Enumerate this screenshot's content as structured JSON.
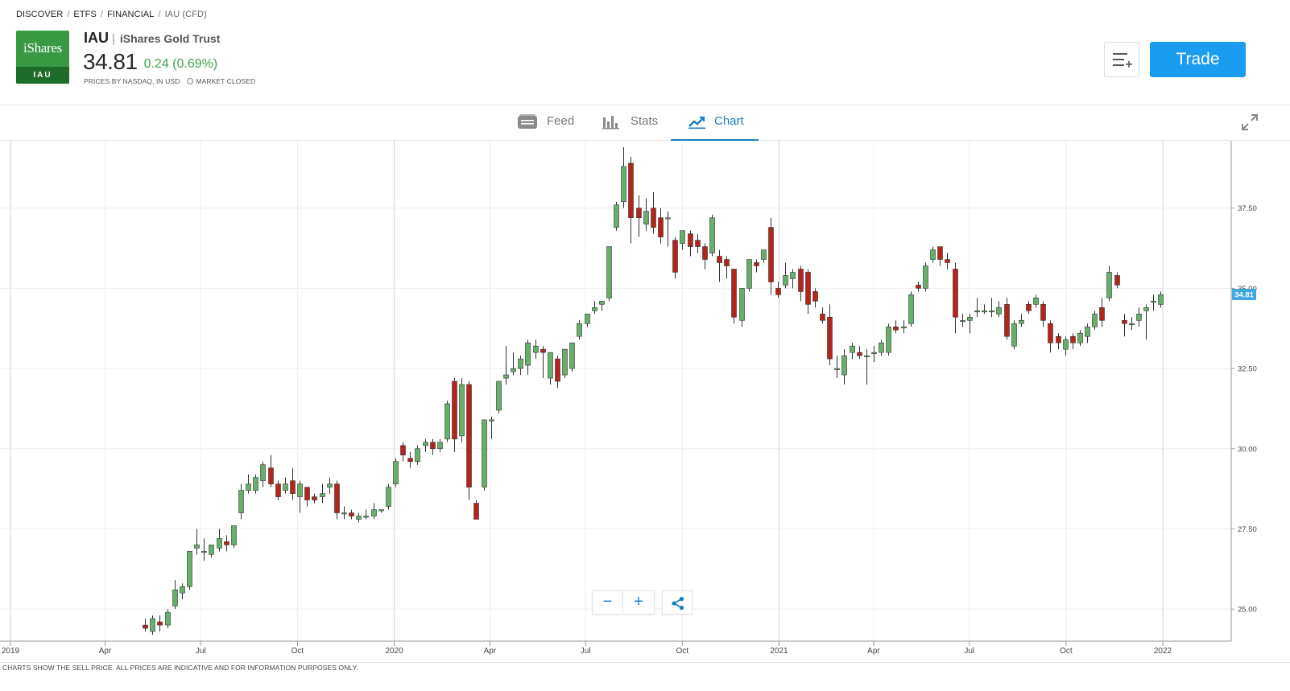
{
  "breadcrumb": [
    "DISCOVER",
    "ETFS",
    "FINANCIAL",
    "IAU (CFD)"
  ],
  "logo": {
    "brand": "iShares",
    "ticker": "IAU",
    "color": "#3a9a44"
  },
  "instrument": {
    "symbol": "IAU",
    "separator": "|",
    "name": "iShares Gold Trust",
    "price": "34.81",
    "change": "0.24 (0.69%)",
    "source": "PRICES BY NASDAQ, IN USD",
    "market_status": "MARKET CLOSED"
  },
  "actions": {
    "watchlist_icon": "add-to-list-icon",
    "trade_label": "Trade"
  },
  "tabs": [
    {
      "label": "Feed",
      "icon": "feed-icon"
    },
    {
      "label": "Stats",
      "icon": "bar-stats-icon"
    },
    {
      "label": "Chart",
      "icon": "trend-chart-icon",
      "active": true
    }
  ],
  "footer_note": "CHARTS SHOW THE SELL PRICE. ALL PRICES ARE INDICATIVE AND FOR INFORMATION PURPOSES ONLY.",
  "colors": {
    "up": "#67b06b",
    "down": "#b5241a",
    "accent": "#1a7fc1",
    "trade": "#1a9cf0",
    "last_price": "#3fa9df"
  },
  "chart_controls": {
    "zoom_out": "−",
    "zoom_in": "+",
    "share_icon": "share-icon"
  },
  "chart_data": {
    "type": "candlestick",
    "interval": "weekly",
    "x_tick_labels": [
      "2019",
      "Apr",
      "Jul",
      "Oct",
      "2020",
      "Apr",
      "Jul",
      "Oct",
      "2021",
      "Apr",
      "Jul",
      "Oct",
      "2022"
    ],
    "y_tick_labels": [
      "25.00",
      "27.50",
      "30.00",
      "32.50",
      "35.00",
      "37.50"
    ],
    "ylim": [
      24.0,
      39.6
    ],
    "last_price_label": "34.81",
    "grid": true,
    "candles": [
      [
        "2019-05-06",
        24.5,
        24.7,
        24.4,
        24.3
      ],
      [
        "2019-05-13",
        24.3,
        24.8,
        24.7,
        24.2
      ],
      [
        "2019-05-20",
        24.6,
        24.8,
        24.5,
        24.3
      ],
      [
        "2019-05-27",
        24.5,
        25.0,
        24.9,
        24.4
      ],
      [
        "2019-06-03",
        25.1,
        25.9,
        25.6,
        25.0
      ],
      [
        "2019-06-10",
        25.5,
        25.8,
        25.7,
        25.3
      ],
      [
        "2019-06-17",
        25.7,
        26.8,
        26.8,
        25.6
      ],
      [
        "2019-06-24",
        26.9,
        27.5,
        27.0,
        26.7
      ],
      [
        "2019-07-01",
        26.8,
        27.2,
        26.8,
        26.5
      ],
      [
        "2019-07-08",
        26.7,
        27.0,
        27.0,
        26.6
      ],
      [
        "2019-07-15",
        26.9,
        27.5,
        27.2,
        26.8
      ],
      [
        "2019-07-22",
        27.1,
        27.3,
        27.0,
        26.8
      ],
      [
        "2019-07-29",
        27.0,
        27.6,
        27.6,
        26.9
      ],
      [
        "2019-08-05",
        28.0,
        28.9,
        28.7,
        27.8
      ],
      [
        "2019-08-12",
        28.7,
        29.2,
        28.9,
        28.6
      ],
      [
        "2019-08-19",
        28.7,
        29.2,
        29.1,
        28.6
      ],
      [
        "2019-08-26",
        29.0,
        29.6,
        29.5,
        28.8
      ],
      [
        "2019-09-02",
        29.4,
        29.8,
        28.9,
        28.8
      ],
      [
        "2019-09-09",
        28.9,
        29.0,
        28.5,
        28.4
      ],
      [
        "2019-09-16",
        28.7,
        29.1,
        28.9,
        28.6
      ],
      [
        "2019-09-23",
        29.0,
        29.4,
        28.6,
        28.4
      ],
      [
        "2019-09-30",
        28.5,
        29.0,
        28.9,
        28.0
      ],
      [
        "2019-10-07",
        28.8,
        28.8,
        28.4,
        28.2
      ],
      [
        "2019-10-14",
        28.5,
        28.6,
        28.4,
        28.3
      ],
      [
        "2019-10-21",
        28.5,
        28.9,
        28.6,
        28.3
      ],
      [
        "2019-10-28",
        28.8,
        29.1,
        28.9,
        28.6
      ],
      [
        "2019-11-04",
        28.9,
        29.0,
        28.0,
        27.8
      ],
      [
        "2019-11-11",
        28.0,
        28.2,
        28.0,
        27.8
      ],
      [
        "2019-11-18",
        28.0,
        28.1,
        27.9,
        27.8
      ],
      [
        "2019-11-25",
        27.8,
        28.0,
        27.9,
        27.7
      ],
      [
        "2019-12-02",
        27.9,
        28.1,
        27.9,
        27.8
      ],
      [
        "2019-12-09",
        27.9,
        28.3,
        28.1,
        27.8
      ],
      [
        "2019-12-16",
        28.1,
        28.1,
        28.1,
        28.0
      ],
      [
        "2019-12-23",
        28.2,
        28.9,
        28.8,
        28.1
      ],
      [
        "2019-12-30",
        28.9,
        29.7,
        29.6,
        28.8
      ],
      [
        "2020-01-06",
        30.1,
        30.2,
        29.8,
        29.6
      ],
      [
        "2020-01-13",
        29.7,
        29.9,
        29.6,
        29.4
      ],
      [
        "2020-01-20",
        29.6,
        30.1,
        30.0,
        29.5
      ],
      [
        "2020-01-27",
        30.1,
        30.3,
        30.2,
        29.9
      ],
      [
        "2020-02-03",
        30.2,
        30.3,
        30.0,
        29.8
      ],
      [
        "2020-02-10",
        30.0,
        30.3,
        30.2,
        29.9
      ],
      [
        "2020-02-17",
        30.3,
        31.5,
        31.4,
        30.2
      ],
      [
        "2020-02-24",
        32.1,
        32.2,
        30.3,
        29.9
      ],
      [
        "2020-03-02",
        30.4,
        32.2,
        32.0,
        30.2
      ],
      [
        "2020-03-09",
        32.0,
        32.1,
        28.8,
        28.4
      ],
      [
        "2020-03-16",
        28.3,
        28.4,
        27.8,
        27.8
      ],
      [
        "2020-03-23",
        28.8,
        30.9,
        30.9,
        28.7
      ],
      [
        "2020-03-30",
        30.9,
        31.0,
        30.9,
        30.3
      ],
      [
        "2020-04-06",
        31.2,
        32.1,
        32.1,
        31.1
      ],
      [
        "2020-04-13",
        32.2,
        33.2,
        32.3,
        32.0
      ],
      [
        "2020-04-20",
        32.4,
        33.0,
        32.5,
        32.3
      ],
      [
        "2020-04-27",
        32.5,
        32.9,
        32.8,
        32.3
      ],
      [
        "2020-05-04",
        32.6,
        33.4,
        33.3,
        32.3
      ],
      [
        "2020-05-11",
        33.0,
        33.4,
        33.2,
        32.8
      ],
      [
        "2020-05-18",
        33.1,
        33.2,
        33.0,
        32.2
      ],
      [
        "2020-05-25",
        32.2,
        33.0,
        33.0,
        32.0
      ],
      [
        "2020-06-01",
        32.8,
        32.9,
        32.1,
        31.9
      ],
      [
        "2020-06-08",
        32.3,
        33.1,
        33.1,
        32.2
      ],
      [
        "2020-06-15",
        32.5,
        33.3,
        33.3,
        32.4
      ],
      [
        "2020-06-22",
        33.5,
        34.0,
        33.9,
        33.4
      ],
      [
        "2020-06-29",
        33.9,
        34.2,
        34.2,
        33.8
      ],
      [
        "2020-07-06",
        34.3,
        34.6,
        34.4,
        34.2
      ],
      [
        "2020-07-13",
        34.5,
        34.6,
        34.6,
        34.3
      ],
      [
        "2020-07-20",
        34.7,
        36.3,
        36.3,
        34.6
      ],
      [
        "2020-07-27",
        36.9,
        37.7,
        37.6,
        36.8
      ],
      [
        "2020-08-03",
        37.7,
        39.4,
        38.8,
        37.5
      ],
      [
        "2020-08-10",
        38.9,
        39.1,
        37.2,
        36.4
      ],
      [
        "2020-08-17",
        37.5,
        37.9,
        37.2,
        36.6
      ],
      [
        "2020-08-24",
        37.0,
        37.8,
        37.4,
        36.8
      ],
      [
        "2020-08-31",
        37.5,
        38.0,
        36.9,
        36.7
      ],
      [
        "2020-09-07",
        37.2,
        37.5,
        36.6,
        36.4
      ],
      [
        "2020-09-14",
        37.2,
        37.4,
        37.2,
        36.3
      ],
      [
        "2020-09-21",
        36.5,
        36.6,
        35.5,
        35.3
      ],
      [
        "2020-09-28",
        36.4,
        36.8,
        36.8,
        36.2
      ],
      [
        "2020-10-05",
        36.7,
        36.8,
        36.3,
        36.0
      ],
      [
        "2020-10-12",
        36.5,
        36.7,
        36.3,
        36.1
      ],
      [
        "2020-10-19",
        36.3,
        36.4,
        35.9,
        35.6
      ],
      [
        "2020-10-26",
        36.1,
        37.3,
        37.2,
        36.0
      ],
      [
        "2020-11-02",
        36.0,
        36.2,
        35.8,
        35.2
      ],
      [
        "2020-11-09",
        35.9,
        36.0,
        35.7,
        35.3
      ],
      [
        "2020-11-16",
        35.6,
        35.6,
        34.1,
        33.9
      ],
      [
        "2020-11-23",
        34.0,
        35.0,
        35.0,
        33.8
      ],
      [
        "2020-11-30",
        35.0,
        35.9,
        35.9,
        34.9
      ],
      [
        "2020-12-07",
        35.8,
        35.9,
        35.7,
        35.5
      ],
      [
        "2020-12-14",
        35.9,
        36.2,
        36.2,
        35.8
      ],
      [
        "2020-12-21",
        36.9,
        37.2,
        35.2,
        34.8
      ],
      [
        "2020-12-28",
        35.0,
        35.2,
        34.8,
        34.7
      ],
      [
        "2021-01-04",
        35.1,
        35.8,
        35.4,
        35.0
      ],
      [
        "2021-01-11",
        35.3,
        35.6,
        35.5,
        35.0
      ],
      [
        "2021-01-18",
        35.6,
        35.7,
        34.9,
        34.6
      ],
      [
        "2021-01-25",
        35.5,
        35.6,
        34.5,
        34.2
      ],
      [
        "2021-02-01",
        34.9,
        35.0,
        34.6,
        34.4
      ],
      [
        "2021-02-08",
        34.2,
        34.4,
        34.0,
        33.9
      ],
      [
        "2021-02-15",
        34.1,
        34.5,
        32.8,
        32.6
      ],
      [
        "2021-02-22",
        32.5,
        32.9,
        32.5,
        32.2
      ],
      [
        "2021-03-01",
        32.3,
        33.1,
        32.9,
        32.0
      ],
      [
        "2021-03-08",
        33.0,
        33.3,
        33.2,
        32.8
      ],
      [
        "2021-03-15",
        33.0,
        33.2,
        32.9,
        32.8
      ],
      [
        "2021-03-22",
        32.9,
        33.1,
        32.9,
        32.0
      ],
      [
        "2021-03-29",
        33.0,
        33.2,
        33.0,
        32.7
      ],
      [
        "2021-04-05",
        33.0,
        33.4,
        33.3,
        32.9
      ],
      [
        "2021-04-12",
        33.0,
        33.9,
        33.8,
        32.9
      ],
      [
        "2021-04-19",
        33.8,
        34.0,
        33.7,
        33.6
      ],
      [
        "2021-04-26",
        33.8,
        34.0,
        33.8,
        33.6
      ],
      [
        "2021-05-03",
        33.9,
        34.9,
        34.8,
        33.8
      ],
      [
        "2021-05-10",
        35.1,
        35.2,
        35.0,
        34.9
      ],
      [
        "2021-05-17",
        35.0,
        35.8,
        35.7,
        34.9
      ],
      [
        "2021-05-24",
        35.9,
        36.3,
        36.2,
        35.8
      ],
      [
        "2021-05-31",
        36.3,
        36.3,
        35.9,
        35.7
      ],
      [
        "2021-06-07",
        35.9,
        36.1,
        35.8,
        35.6
      ],
      [
        "2021-06-14",
        35.6,
        35.8,
        34.1,
        33.6
      ],
      [
        "2021-06-21",
        34.0,
        34.2,
        34.0,
        33.8
      ],
      [
        "2021-06-28",
        34.0,
        34.2,
        34.1,
        33.6
      ],
      [
        "2021-07-05",
        34.3,
        34.7,
        34.3,
        34.1
      ],
      [
        "2021-07-12",
        34.3,
        34.5,
        34.3,
        34.2
      ],
      [
        "2021-07-19",
        34.3,
        34.7,
        34.3,
        34.1
      ],
      [
        "2021-07-26",
        34.2,
        34.6,
        34.4,
        34.1
      ],
      [
        "2021-08-02",
        34.5,
        34.7,
        33.5,
        33.4
      ],
      [
        "2021-08-09",
        33.2,
        34.0,
        33.9,
        33.1
      ],
      [
        "2021-08-16",
        33.9,
        34.2,
        34.0,
        33.8
      ],
      [
        "2021-08-23",
        34.5,
        34.6,
        34.3,
        34.2
      ],
      [
        "2021-08-30",
        34.5,
        34.8,
        34.7,
        34.4
      ],
      [
        "2021-09-06",
        34.5,
        34.6,
        34.0,
        33.8
      ],
      [
        "2021-09-13",
        33.9,
        34.0,
        33.3,
        33.0
      ],
      [
        "2021-09-20",
        33.5,
        33.6,
        33.3,
        33.1
      ],
      [
        "2021-09-27",
        33.1,
        33.5,
        33.4,
        32.9
      ],
      [
        "2021-10-04",
        33.5,
        33.6,
        33.3,
        33.1
      ],
      [
        "2021-10-11",
        33.3,
        33.7,
        33.6,
        33.2
      ],
      [
        "2021-10-18",
        33.5,
        33.9,
        33.8,
        33.3
      ],
      [
        "2021-10-25",
        33.8,
        34.3,
        34.2,
        33.7
      ],
      [
        "2021-11-01",
        34.4,
        34.7,
        34.0,
        33.8
      ],
      [
        "2021-11-08",
        34.7,
        35.7,
        35.5,
        34.6
      ],
      [
        "2021-11-15",
        35.4,
        35.5,
        35.1,
        35.0
      ],
      [
        "2021-11-22",
        34.0,
        34.2,
        33.9,
        33.5
      ],
      [
        "2021-11-29",
        33.9,
        34.1,
        33.9,
        33.7
      ],
      [
        "2021-12-06",
        34.0,
        34.4,
        34.2,
        33.8
      ],
      [
        "2021-12-13",
        34.3,
        34.5,
        34.4,
        33.4
      ],
      [
        "2021-12-20",
        34.6,
        34.8,
        34.6,
        34.3
      ],
      [
        "2021-12-27",
        34.5,
        34.9,
        34.8,
        34.4
      ]
    ]
  }
}
